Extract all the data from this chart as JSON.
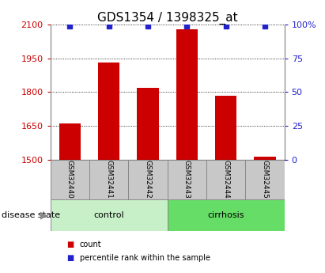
{
  "title": "GDS1354 / 1398325_at",
  "samples": [
    "GSM32440",
    "GSM32441",
    "GSM32442",
    "GSM32443",
    "GSM32444",
    "GSM32445"
  ],
  "counts": [
    1660,
    1930,
    1820,
    2080,
    1785,
    1515
  ],
  "percentile_ranks": [
    99,
    99,
    99,
    99,
    99,
    99
  ],
  "ylim_left": [
    1500,
    2100
  ],
  "ylim_right": [
    0,
    100
  ],
  "yticks_left": [
    1500,
    1650,
    1800,
    1950,
    2100
  ],
  "yticks_right": [
    0,
    25,
    50,
    75,
    100
  ],
  "ytick_labels_right": [
    "0",
    "25",
    "50",
    "75",
    "100%"
  ],
  "bar_color": "#cc0000",
  "dot_color": "#2222cc",
  "groups": [
    {
      "label": "control",
      "indices": [
        0,
        1,
        2
      ],
      "color": "#c8f0c8"
    },
    {
      "label": "cirrhosis",
      "indices": [
        3,
        4,
        5
      ],
      "color": "#66dd66"
    }
  ],
  "disease_state_label": "disease state",
  "legend_items": [
    {
      "label": "count",
      "color": "#cc0000"
    },
    {
      "label": "percentile rank within the sample",
      "color": "#2222cc"
    }
  ],
  "grid_color": "black",
  "background_color": "#ffffff",
  "title_fontsize": 11,
  "sample_box_color": "#c8c8c8",
  "sample_box_edge": "#888888"
}
